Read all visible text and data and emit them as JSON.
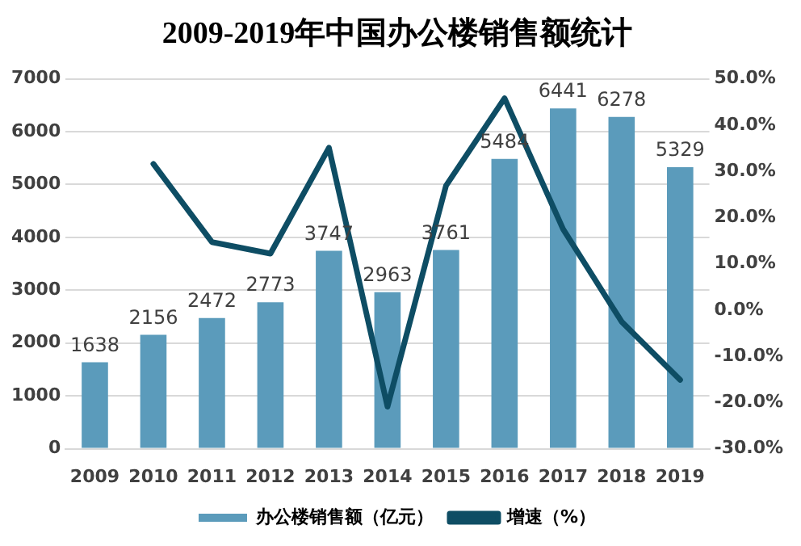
{
  "chart_data": {
    "type": "bar",
    "title": "2009-2019年中国办公楼销售额统计",
    "categories": [
      "2009",
      "2010",
      "2011",
      "2012",
      "2013",
      "2014",
      "2015",
      "2016",
      "2017",
      "2018",
      "2019"
    ],
    "series": [
      {
        "name": "办公楼销售额（亿元）",
        "type": "bar",
        "color": "#5b9bbb",
        "values": [
          1638,
          2156,
          2472,
          2773,
          3747,
          2963,
          3761,
          5484,
          6441,
          6278,
          5329
        ],
        "value_labels": [
          "1638",
          "2156",
          "2472",
          "2773",
          "3747",
          "2963",
          "3761",
          "5484",
          "6441",
          "6278",
          "5329"
        ]
      },
      {
        "name": "增速（%）",
        "type": "line",
        "axis": "y2",
        "color": "#0e4d64",
        "values": [
          null,
          31.6,
          14.7,
          12.2,
          35.1,
          -20.9,
          26.9,
          45.8,
          17.5,
          -2.5,
          -15.1
        ]
      }
    ],
    "ylim": [
      0,
      7000
    ],
    "yticks": [
      0,
      1000,
      2000,
      3000,
      4000,
      5000,
      6000,
      7000
    ],
    "y2lim": [
      -30,
      50
    ],
    "y2ticks": [
      {
        "value": -30,
        "label": "-30.0%"
      },
      {
        "value": -20,
        "label": "-20.0%"
      },
      {
        "value": -10,
        "label": "-10.0%"
      },
      {
        "value": 0,
        "label": "0.0%"
      },
      {
        "value": 10,
        "label": "10.0%"
      },
      {
        "value": 20,
        "label": "20.0%"
      },
      {
        "value": 30,
        "label": "30.0%"
      },
      {
        "value": 40,
        "label": "40.0%"
      },
      {
        "value": 50,
        "label": "50.0%"
      }
    ],
    "grid": "y",
    "legend": "bottom",
    "marker": "none"
  }
}
